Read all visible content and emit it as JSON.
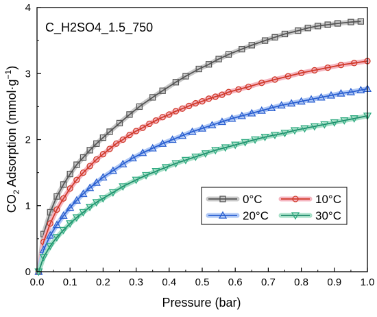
{
  "chart_data": {
    "type": "line",
    "title": "C_H2SO4_1.5_750",
    "xlabel": "Pressure (bar)",
    "ylabel": {
      "prefix": "CO",
      "sub": "2",
      "middle": " Adsorption (mmol·g",
      "sup": "−1",
      "suffix": ")"
    },
    "xlim": [
      0.0,
      1.0
    ],
    "ylim": [
      0,
      4
    ],
    "xticks": [
      "0.0",
      "0.1",
      "0.2",
      "0.3",
      "0.4",
      "0.5",
      "0.6",
      "0.7",
      "0.8",
      "0.9",
      "1.0"
    ],
    "yticks": [
      "0",
      "1",
      "2",
      "3",
      "4"
    ],
    "grid": false,
    "legend_position": "bottom-right",
    "series": [
      {
        "name": "0°C",
        "marker": "square",
        "line_color": "#555555",
        "marker_color": "#555555",
        "halo_color": "#c8c8c8",
        "x": [
          0.005,
          0.02,
          0.04,
          0.06,
          0.08,
          0.1,
          0.12,
          0.14,
          0.16,
          0.18,
          0.2,
          0.22,
          0.25,
          0.28,
          0.31,
          0.35,
          0.38,
          0.42,
          0.45,
          0.49,
          0.52,
          0.55,
          0.58,
          0.62,
          0.65,
          0.69,
          0.72,
          0.75,
          0.79,
          0.82,
          0.85,
          0.88,
          0.91,
          0.95,
          0.98
        ],
        "y": [
          0.0,
          0.57,
          0.9,
          1.14,
          1.32,
          1.48,
          1.62,
          1.73,
          1.84,
          1.94,
          2.03,
          2.12,
          2.25,
          2.38,
          2.5,
          2.64,
          2.74,
          2.87,
          2.96,
          3.07,
          3.14,
          3.22,
          3.29,
          3.37,
          3.43,
          3.5,
          3.55,
          3.6,
          3.65,
          3.69,
          3.72,
          3.74,
          3.76,
          3.78,
          3.79
        ]
      },
      {
        "name": "10°C",
        "marker": "circle",
        "line_color": "#d03a2a",
        "marker_color": "#d03a2a",
        "halo_color": "#f5b5c0",
        "x": [
          0.005,
          0.02,
          0.04,
          0.06,
          0.08,
          0.1,
          0.12,
          0.14,
          0.16,
          0.18,
          0.2,
          0.22,
          0.24,
          0.26,
          0.28,
          0.3,
          0.32,
          0.34,
          0.36,
          0.38,
          0.4,
          0.42,
          0.44,
          0.46,
          0.48,
          0.5,
          0.52,
          0.54,
          0.56,
          0.58,
          0.61,
          0.64,
          0.68,
          0.72,
          0.76,
          0.8,
          0.84,
          0.88,
          0.92,
          0.96,
          1.0
        ],
        "y": [
          0.0,
          0.45,
          0.73,
          0.94,
          1.11,
          1.26,
          1.39,
          1.5,
          1.6,
          1.7,
          1.78,
          1.86,
          1.94,
          2.0,
          2.07,
          2.13,
          2.18,
          2.24,
          2.29,
          2.34,
          2.38,
          2.43,
          2.47,
          2.51,
          2.55,
          2.58,
          2.62,
          2.65,
          2.68,
          2.72,
          2.76,
          2.8,
          2.86,
          2.91,
          2.96,
          3.01,
          3.05,
          3.09,
          3.13,
          3.16,
          3.19
        ]
      },
      {
        "name": "20°C",
        "marker": "triangle-up",
        "line_color": "#2a5fd0",
        "marker_color": "#2a5fd0",
        "halo_color": "#b0c8f5",
        "x": [
          0.005,
          0.02,
          0.04,
          0.06,
          0.08,
          0.1,
          0.12,
          0.14,
          0.16,
          0.18,
          0.2,
          0.23,
          0.26,
          0.29,
          0.32,
          0.35,
          0.38,
          0.41,
          0.44,
          0.47,
          0.5,
          0.53,
          0.56,
          0.59,
          0.62,
          0.65,
          0.68,
          0.71,
          0.74,
          0.77,
          0.8,
          0.83,
          0.86,
          0.89,
          0.92,
          0.95,
          0.98,
          1.0
        ],
        "y": [
          0.0,
          0.33,
          0.55,
          0.71,
          0.85,
          0.97,
          1.08,
          1.18,
          1.27,
          1.35,
          1.43,
          1.53,
          1.63,
          1.72,
          1.8,
          1.87,
          1.94,
          2.0,
          2.06,
          2.12,
          2.17,
          2.22,
          2.27,
          2.32,
          2.36,
          2.4,
          2.44,
          2.48,
          2.52,
          2.55,
          2.58,
          2.61,
          2.64,
          2.67,
          2.7,
          2.72,
          2.75,
          2.77
        ]
      },
      {
        "name": "30°C",
        "marker": "triangle-down",
        "line_color": "#1e8a6a",
        "marker_color": "#2eaa80",
        "halo_color": "#a8e0c8",
        "x": [
          0.005,
          0.02,
          0.04,
          0.06,
          0.08,
          0.1,
          0.12,
          0.14,
          0.16,
          0.18,
          0.2,
          0.23,
          0.26,
          0.3,
          0.33,
          0.36,
          0.39,
          0.42,
          0.45,
          0.48,
          0.51,
          0.54,
          0.57,
          0.6,
          0.63,
          0.66,
          0.69,
          0.72,
          0.75,
          0.78,
          0.81,
          0.84,
          0.87,
          0.9,
          0.93,
          0.96,
          1.0
        ],
        "y": [
          0.0,
          0.22,
          0.39,
          0.52,
          0.63,
          0.73,
          0.82,
          0.9,
          0.98,
          1.05,
          1.11,
          1.2,
          1.29,
          1.39,
          1.46,
          1.52,
          1.58,
          1.64,
          1.69,
          1.74,
          1.79,
          1.84,
          1.88,
          1.92,
          1.96,
          2.0,
          2.04,
          2.07,
          2.1,
          2.14,
          2.17,
          2.2,
          2.23,
          2.26,
          2.29,
          2.32,
          2.36
        ]
      }
    ]
  }
}
